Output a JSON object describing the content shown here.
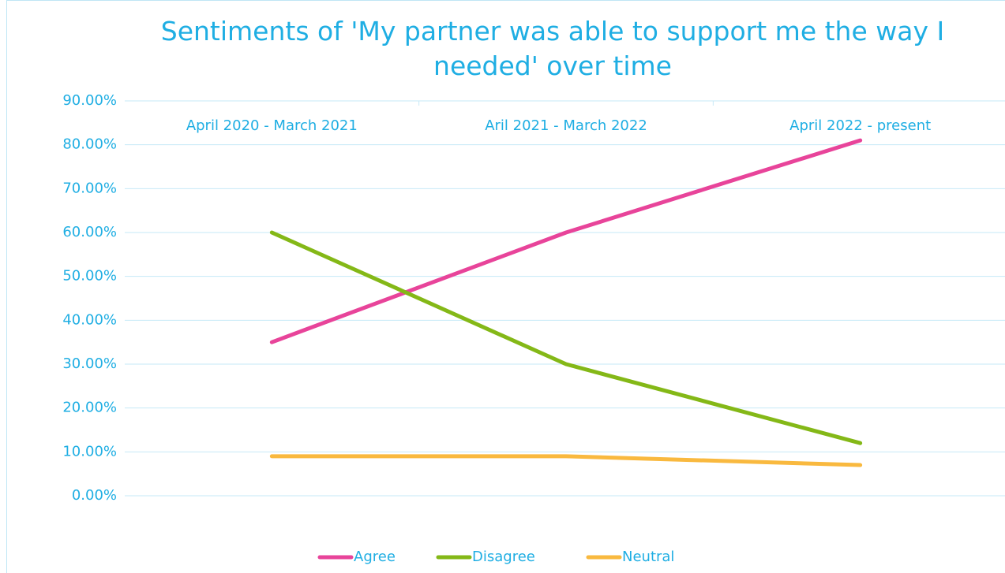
{
  "chart_data": {
    "type": "line",
    "title": "Sentiments of 'My partner was able to support me the way I needed' over time",
    "categories": [
      "April 2020 - March 2021",
      "Aril 2021 - March 2022",
      "April 2022 - present"
    ],
    "series": [
      {
        "name": "Agree",
        "color": "#e8449a",
        "values": [
          35,
          60,
          81
        ]
      },
      {
        "name": "Disagree",
        "color": "#84b817",
        "values": [
          60,
          30,
          12
        ]
      },
      {
        "name": "Neutral",
        "color": "#f9b93f",
        "values": [
          9,
          9,
          7
        ]
      }
    ],
    "ylim": [
      0,
      90
    ],
    "yticks": [
      {
        "value": 0,
        "label": "0.00%"
      },
      {
        "value": 10,
        "label": "10.00%"
      },
      {
        "value": 20,
        "label": "20.00%"
      },
      {
        "value": 30,
        "label": "30.00%"
      },
      {
        "value": 40,
        "label": "40.00%"
      },
      {
        "value": 50,
        "label": "50.00%"
      },
      {
        "value": 60,
        "label": "60.00%"
      },
      {
        "value": 70,
        "label": "70.00%"
      },
      {
        "value": 80,
        "label": "80.00%"
      },
      {
        "value": 90,
        "label": "90.00%"
      }
    ],
    "grid": true,
    "legend": "bottom"
  }
}
